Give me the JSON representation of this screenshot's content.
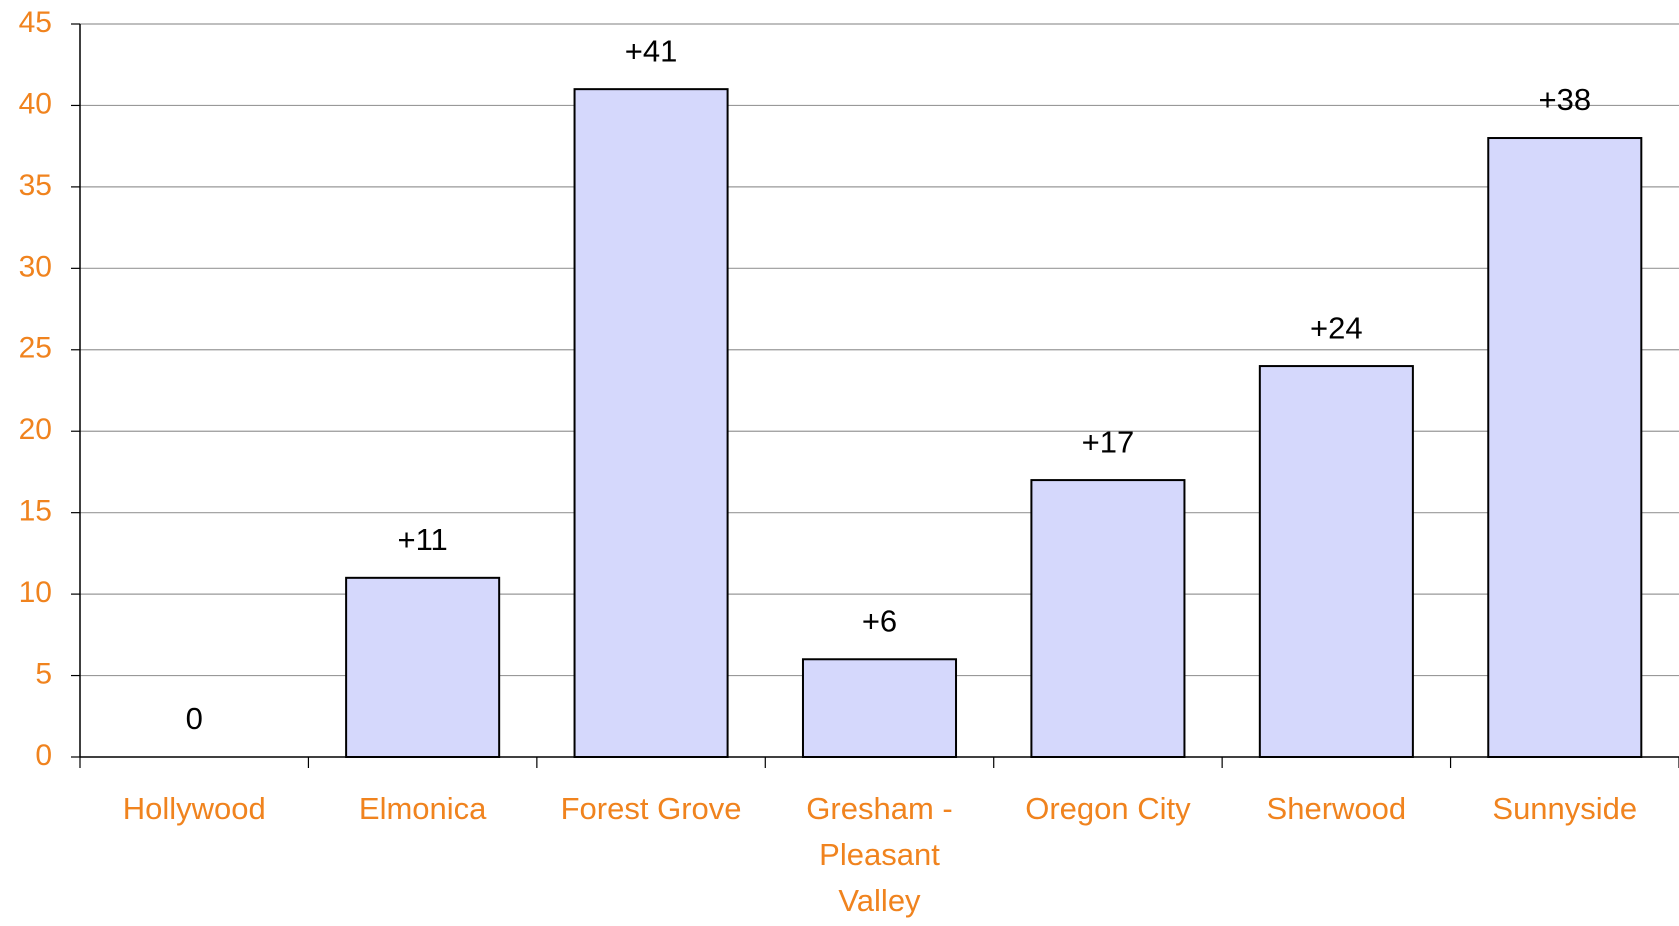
{
  "chart_data": {
    "type": "bar",
    "categories": [
      "Hollywood",
      "Elmonica",
      "Forest Grove",
      "Gresham - Pleasant Valley",
      "Oregon City",
      "Sherwood",
      "Sunnyside"
    ],
    "values": [
      0,
      11,
      41,
      6,
      17,
      24,
      38
    ],
    "value_labels": [
      "0",
      "+11",
      "+41",
      "+6",
      "+17",
      "+24",
      "+38"
    ],
    "color": "#d5d8fc",
    "ylim": [
      0,
      45
    ],
    "yticks": [
      0,
      5,
      10,
      15,
      20,
      25,
      30,
      35,
      40,
      45
    ],
    "grid": true
  }
}
